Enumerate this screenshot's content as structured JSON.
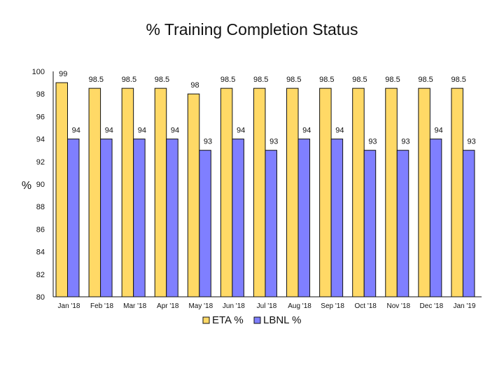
{
  "chart_data": {
    "type": "bar",
    "title": "% Training Completion Status",
    "ylabel": "%",
    "xlabel": "",
    "ylim": [
      80,
      100
    ],
    "yticks": [
      80,
      82,
      84,
      86,
      88,
      90,
      92,
      94,
      96,
      98,
      100
    ],
    "grid": false,
    "legend": "bottom",
    "categories": [
      "Jan '18",
      "Feb '18",
      "Mar '18",
      "Apr '18",
      "May '18",
      "Jun '18",
      "Jul '18",
      "Aug '18",
      "Sep '18",
      "Oct '18",
      "Nov '18",
      "Dec '18",
      "Jan '19"
    ],
    "series": [
      {
        "name": "ETA %",
        "color": "#FFD966",
        "values": [
          99,
          98.5,
          98.5,
          98.5,
          98,
          98.5,
          98.5,
          98.5,
          98.5,
          98.5,
          98.5,
          98.5,
          98.5
        ]
      },
      {
        "name": "LBNL %",
        "color": "#7F7FFF",
        "values": [
          94,
          94,
          94,
          94,
          93,
          94,
          93,
          94,
          94,
          93,
          93,
          94,
          93
        ]
      }
    ]
  }
}
